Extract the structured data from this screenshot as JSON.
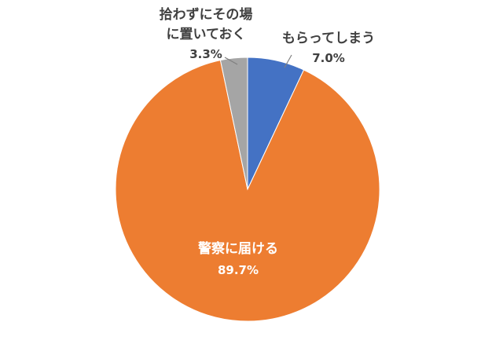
{
  "chart_data": {
    "type": "pie",
    "title": "",
    "slices": [
      {
        "label": "もらってしまう",
        "value": 7.0,
        "value_label": "7.0%",
        "color": "#4472C4"
      },
      {
        "label": "警察に届ける",
        "value": 89.7,
        "value_label": "89.7%",
        "color": "#ED7D31"
      },
      {
        "label": "拾わずにその場に置いておく",
        "label_lines": [
          "拾わずにその場",
          "に置いておく"
        ],
        "value": 3.3,
        "value_label": "3.3%",
        "color": "#A5A5A5"
      }
    ],
    "start_angle_deg": 0,
    "direction": "clockwise",
    "legend": "none"
  }
}
